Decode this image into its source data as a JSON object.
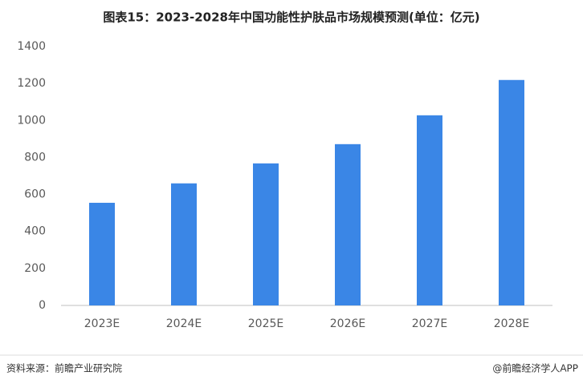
{
  "chart_data": {
    "type": "bar",
    "title": "图表15：2023-2028年中国功能性护肤品市场规模预测(单位：亿元)",
    "categories": [
      "2023E",
      "2024E",
      "2025E",
      "2026E",
      "2027E",
      "2028E"
    ],
    "values": [
      555,
      660,
      768,
      872,
      1028,
      1219
    ],
    "color": "#3a86e6",
    "ylim": [
      0,
      1400
    ],
    "yticks": [
      0,
      200,
      400,
      600,
      800,
      1000,
      1200,
      1400
    ],
    "grid": false,
    "source": "资料来源：前瞻产业研究院",
    "credit": "@前瞻经济学人APP"
  }
}
